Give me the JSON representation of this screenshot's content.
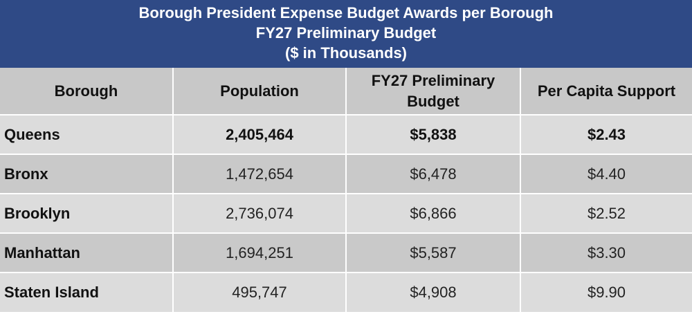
{
  "title": {
    "line1": "Borough President Expense Budget Awards per Borough",
    "line2": "FY27 Preliminary Budget",
    "line3": "($ in Thousands)"
  },
  "table": {
    "headers": {
      "borough": "Borough",
      "population": "Population",
      "budget_line1": "FY27 Preliminary",
      "budget_line2": "Budget",
      "per_capita": "Per Capita Support"
    },
    "rows": [
      {
        "borough": "Queens",
        "population": "2,405,464",
        "budget": "$5,838",
        "per_capita": "$2.43"
      },
      {
        "borough": "Bronx",
        "population": "1,472,654",
        "budget": "$6,478",
        "per_capita": "$4.40"
      },
      {
        "borough": "Brooklyn",
        "population": "2,736,074",
        "budget": "$6,866",
        "per_capita": "$2.52"
      },
      {
        "borough": "Manhattan",
        "population": "1,694,251",
        "budget": "$5,587",
        "per_capita": "$3.30"
      },
      {
        "borough": "Staten Island",
        "population": "495,747",
        "budget": "$4,908",
        "per_capita": "$9.90"
      }
    ]
  },
  "colors": {
    "title_background": "#2f4a86",
    "header_background": "#c8c8c8",
    "row_light": "#dcdcdc",
    "row_dark": "#c9c9c9"
  }
}
